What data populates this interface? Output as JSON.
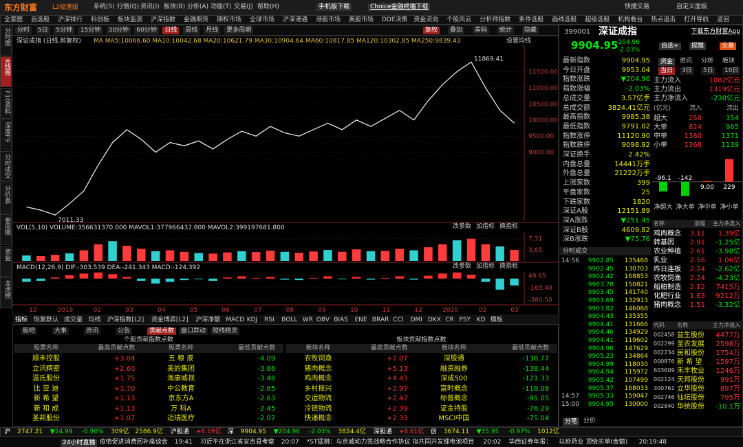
{
  "top_bar": {
    "logo": "东方财富",
    "edition": "L2极速版",
    "menu": [
      "系统(S)",
      "行情(Q)",
      "资讯(I)",
      "板块(B)",
      "分析(A)",
      "功能(T)",
      "交易(J)",
      "帮助(H)"
    ],
    "mobile": "手机版下载",
    "choice": "Choice金融终端下载",
    "quick_trade": "快捷交易",
    "custom_panel": "自定义面板"
  },
  "nav": [
    "全景图",
    "自选股",
    "沪深排行",
    "科创板",
    "板块监测",
    "沪深指数",
    "金融期货",
    "期权市场",
    "全球市场",
    "沪深港通",
    "港股市场",
    "美股市场",
    "DDE决策",
    "资金流向",
    "个股风云",
    "分析师指数",
    "条件选股",
    "画线选股",
    "超级选股",
    "机构看台",
    "热点追击",
    "打开导航",
    "返回"
  ],
  "periods": [
    "分时",
    "5日",
    "5分钟",
    "15分钟",
    "30分钟",
    "60分钟",
    "日线",
    "周线",
    "月线",
    "更多周期"
  ],
  "tools": [
    "复权",
    "叠加",
    "筹码",
    "统计",
    "隐藏"
  ],
  "side_tabs": [
    "分时图",
    "K线图",
    "F10资料",
    "深度F9",
    "分时成交",
    "分价表",
    "参周期",
    "资金",
    "龙虎榜"
  ],
  "chart": {
    "title": "深证成指 (日线,前复权)",
    "ma_header": "MA MA5:10066.60 MA10:10042.68 MA20:10621.79 MA30:10904.64 MA60:10817.85 MA120:10302.85 MA250:9839.43",
    "ma_setting": "设置均线",
    "price": {
      "color": "#e8e8e8",
      "ylim": [
        6860,
        12320
      ],
      "yticks": [
        {
          "value": 11500,
          "label": "11500.00"
        },
        {
          "value": 11000,
          "label": "11000.00"
        },
        {
          "value": 10500,
          "label": "10500.00"
        },
        {
          "value": 10000,
          "label": "10000.00"
        },
        {
          "value": 9500,
          "label": "9500.00"
        },
        {
          "value": 9000,
          "label": "9000.00"
        }
      ],
      "values": [
        7300,
        7200,
        7050,
        7400,
        7800,
        8600,
        9300,
        9700,
        9400,
        9000,
        9300,
        9200,
        9350,
        9100,
        9400,
        9650,
        9500,
        9800,
        9600,
        9500,
        9700,
        9900,
        9700,
        10000,
        9800,
        10050,
        10300,
        10000,
        10600,
        11100,
        11500,
        11800,
        11000,
        10300,
        9905
      ],
      "high_label": "11869.41",
      "low_label": "7011.33"
    },
    "volume": {
      "header": "VOL(5,10) VOLUME:356631370.000 MAVOL1:377966437.800 MAVOL2:399197681.800",
      "color": "#ff3c3c",
      "ylim": [
        0,
        9.5
      ],
      "yticks": [
        7.31,
        3.65
      ],
      "values": [
        1.8,
        1.6,
        2.0,
        2.5,
        3.5,
        5.5,
        6.5,
        5.0,
        4.0,
        3.2,
        3.5,
        3.0,
        2.6,
        2.4,
        2.8,
        3.2,
        2.9,
        3.4,
        3.0,
        2.7,
        3.1,
        3.6,
        3.0,
        3.8,
        3.2,
        3.3,
        4.0,
        3.5,
        4.5,
        5.5,
        6.8,
        7.3,
        5.5,
        4.8,
        3.6
      ]
    },
    "macd": {
      "header": "MACD(12,26,9) DIF:-303.539 DEA:-241.343 MACD:-124.392",
      "ylim": [
        -450,
        120
      ],
      "yticks": [
        49.65,
        {
          "value": -165.4,
          "label": "-165.40"
        },
        {
          "value": -380.5,
          "label": "-380.50"
        }
      ],
      "values": [
        -60,
        -40,
        20,
        60,
        90,
        110,
        80,
        30,
        -40,
        -90,
        -60,
        -30,
        -10,
        -40,
        20,
        40,
        10,
        30,
        -20,
        -30,
        10,
        40,
        -10,
        30,
        -20,
        10,
        40,
        -20,
        50,
        90,
        110,
        70,
        -60,
        -200,
        -124
      ]
    },
    "panel_buttons": [
      "改参数",
      "加指标",
      "换指标"
    ],
    "dates": [
      "12",
      "2019",
      "02",
      "03",
      "04",
      "05",
      "06",
      "07",
      "08",
      "09",
      "10",
      "11",
      "12",
      "2020",
      "02",
      "03"
    ],
    "indicator_tabs": [
      "指标",
      "恢复默认",
      "成交量",
      "均线",
      "沪深指数[L2]",
      "资金博弈[L2]",
      "沪深净额",
      "MACD",
      "KDJ",
      "RSI",
      "BOLL",
      "WR",
      "OBV",
      "BIAS",
      "ENE",
      "BRAR",
      "CCI",
      "DMI",
      "DKX",
      "CR",
      "PSY",
      "KD",
      "模板"
    ]
  },
  "bottom": {
    "tabs": [
      "股吧",
      "大事",
      "资讯",
      "公告",
      "贡献点数",
      "盘口异动",
      "短线精灵"
    ],
    "stock_table": {
      "title": "个股贡献指数点数",
      "headers": [
        "股票名称",
        "最高贡献点数",
        "股票名称",
        "最低贡献点数"
      ],
      "rows": [
        [
          "顺丰控股",
          "+3.04",
          "五 粮 液",
          "-4.09"
        ],
        [
          "立讯精密",
          "+2.60",
          "美的集团",
          "-3.86"
        ],
        [
          "温氏股份",
          "+1.75",
          "海康威视",
          "-3.48"
        ],
        [
          "比 亚 迪",
          "+1.70",
          "中公教育",
          "-2.65"
        ],
        [
          "新 希 望",
          "+1.13",
          "京东方A",
          "-2.63"
        ],
        [
          "新 和 成",
          "+1.13",
          "万 科A",
          "-2.45"
        ],
        [
          "圣邦股份",
          "+1.07",
          "迈瑞医疗",
          "-2.07"
        ]
      ]
    },
    "sector_table": {
      "title": "板块贡献指数点数",
      "headers": [
        "板块名称",
        "最高贡献点数",
        "板块名称",
        "最低贡献点数"
      ],
      "rows": [
        [
          "农牧饲渔",
          "+7.07",
          "深股通",
          "-138.77"
        ],
        [
          "猪肉概念",
          "+5.13",
          "融资融券",
          "-138.44"
        ],
        [
          "鸡肉概念",
          "+4.43",
          "深成500",
          "-121.33"
        ],
        [
          "乡村振兴",
          "+2.97",
          "富时概念",
          "-118.08"
        ],
        [
          "交运物流",
          "+2.47",
          "标普概念",
          "-95.05"
        ],
        [
          "冷链物流",
          "+2.39",
          "证金持股",
          "-76.29"
        ],
        [
          "快递概念",
          "+2.33",
          "MSCI中国",
          "-75.04"
        ]
      ]
    }
  },
  "quote": {
    "code": "399001",
    "name": "深证成指",
    "app": "下载东方财富App",
    "price": "9904.95",
    "change": "-204.96",
    "pct": "-2.03%",
    "buttons": [
      "自选+",
      "提醒",
      "交易"
    ],
    "stats": [
      [
        "最新指数",
        "9904.95"
      ],
      [
        "今日开盘",
        "9953.04"
      ],
      [
        "指数涨跌",
        "▼204.96"
      ],
      [
        "指数涨幅",
        "-2.03%"
      ],
      [
        "总成交量",
        "3.57亿手"
      ],
      [
        "总成交额",
        "3824.41亿元"
      ],
      [
        "最高指数",
        "9985.38"
      ],
      [
        "最低指数",
        "9791.02"
      ],
      [
        "指数涨停",
        "11120.90"
      ],
      [
        "指数跌停",
        "9098.92"
      ],
      [
        "深证换手",
        "2.42%"
      ],
      [
        "内盘总量",
        "14441万手"
      ],
      [
        "外盘总量",
        "21222万手"
      ],
      [
        "上涨家数",
        "399"
      ],
      [
        "平盘家数",
        "25"
      ],
      [
        "下跌家数",
        "1820"
      ],
      [
        "深证A股",
        "12151.89"
      ],
      [
        "深A涨跌",
        "▼251.45"
      ],
      [
        "深证B股",
        "4609.82"
      ],
      [
        "深B涨跌",
        "▼75.76"
      ]
    ]
  },
  "fund": {
    "tabs": [
      "资金",
      "资讯",
      "分析",
      "板块"
    ],
    "periods": [
      "当日",
      "3日",
      "5日",
      "10日"
    ],
    "main": [
      [
        "主力流入",
        "1082亿元"
      ],
      [
        "主力流出",
        "1319亿元"
      ],
      [
        "主力净流入",
        "-238亿元"
      ]
    ],
    "headers": [
      "(亿元)",
      "流入",
      "流出"
    ],
    "rows": [
      [
        "超大",
        "258",
        "354"
      ],
      [
        "大单",
        "824",
        "965"
      ],
      [
        "中单",
        "1380",
        "1371"
      ],
      [
        "小单",
        "1368",
        "1139"
      ]
    ],
    "net_flow": {
      "categories": [
        "净超大",
        "净大单",
        "净中单",
        "净小单"
      ],
      "values": [
        -96.1,
        -142,
        9,
        229
      ],
      "value_labels": [
        "-96.1",
        "-142",
        "9.00",
        "229"
      ],
      "ylim": [
        -160,
        240
      ],
      "up_color": "#ff3232",
      "down_color": "#00d000"
    }
  },
  "sectors": {
    "headers": [
      "名称",
      "涨幅",
      "主力净流入"
    ],
    "rows": [
      [
        "鸡肉概念",
        "3.11",
        "1.39亿"
      ],
      [
        "转基因",
        "2.91",
        "-1.25亿"
      ],
      [
        "农业种植",
        "2.61",
        "-3.98亿"
      ],
      [
        "乳业",
        "2.56",
        "1.06亿"
      ],
      [
        "昨日连板",
        "2.24",
        "-2.62亿"
      ],
      [
        "农牧饲渔",
        "2.24",
        "-4.23亿"
      ],
      [
        "船舶制造",
        "2.12",
        "7415万"
      ],
      [
        "化肥行业",
        "1.63",
        "9212万"
      ],
      [
        "猪肉概念",
        "1.51",
        "-3.32亿"
      ]
    ]
  },
  "stocks": {
    "headers": [
      "代码",
      "名称",
      "主力净流入"
    ],
    "rows": [
      [
        "002458",
        "益生股份",
        "4477万"
      ],
      [
        "002299",
        "圣农发展",
        "2598万"
      ],
      [
        "002234",
        "民和股份",
        "1754万"
      ],
      [
        "000876",
        "新 希 望",
        "1597万"
      ],
      [
        "603609",
        "禾丰牧业",
        "1246万"
      ],
      [
        "002124",
        "天邦股份",
        "991万"
      ],
      [
        "300761",
        "立华股份",
        "897万"
      ],
      [
        "002746",
        "仙坛股份",
        "795万"
      ],
      [
        "002840",
        "华统股份",
        "-10.1万"
      ]
    ]
  },
  "ticks": {
    "title": "分时成交",
    "rows": [
      [
        "14:56",
        "9902.85",
        "135468"
      ],
      [
        "",
        "9902.45",
        "130703"
      ],
      [
        "",
        "9902.42",
        "168853"
      ],
      [
        "",
        "9903.78",
        "150821"
      ],
      [
        "",
        "9903.45",
        "141740"
      ],
      [
        "",
        "9903.69",
        "132913"
      ],
      [
        "",
        "9903.82",
        "146068"
      ],
      [
        "",
        "9904.43",
        "135355"
      ],
      [
        "",
        "9904.41",
        "131666"
      ],
      [
        "",
        "9904.46",
        "134929"
      ],
      [
        "",
        "9904.41",
        "119602"
      ],
      [
        "",
        "9904.96",
        "147629"
      ],
      [
        "",
        "9905.23",
        "134864"
      ],
      [
        "",
        "9904.99",
        "118030"
      ],
      [
        "",
        "9904.94",
        "115972"
      ],
      [
        "",
        "9905.42",
        "107499"
      ],
      [
        "",
        "9905.37",
        "168033"
      ],
      [
        "14:57",
        "9905.33",
        "159047"
      ],
      [
        "15:00",
        "9904.95",
        "130000"
      ]
    ],
    "buttons": [
      "分笔",
      "分价"
    ]
  },
  "status": {
    "row1": [
      "沪",
      "2747.21",
      "▼24.99",
      "-0.90%",
      "309亿",
      "2586.9亿",
      "沪股通",
      "+6.19亿",
      "深",
      "9904.95",
      "▼204.96",
      "-2.03%",
      "3824.4亿",
      "深股通",
      "+6.61亿",
      "创",
      "3674.11",
      "▼35.95",
      "-0.97%",
      "1012亿"
    ],
    "row2": [
      "24小时直播",
      "疫情促进消费回补座谈会",
      "19:41",
      "习近平在浙江省安吉县考察",
      "20:07",
      "*ST猛狮：与京威动力签战略合作协议 拟共同开发锂电池项目",
      "20:02",
      "华西证券年报：",
      "以岭药业 顶级买单(金额)",
      "20:19:48"
    ]
  }
}
